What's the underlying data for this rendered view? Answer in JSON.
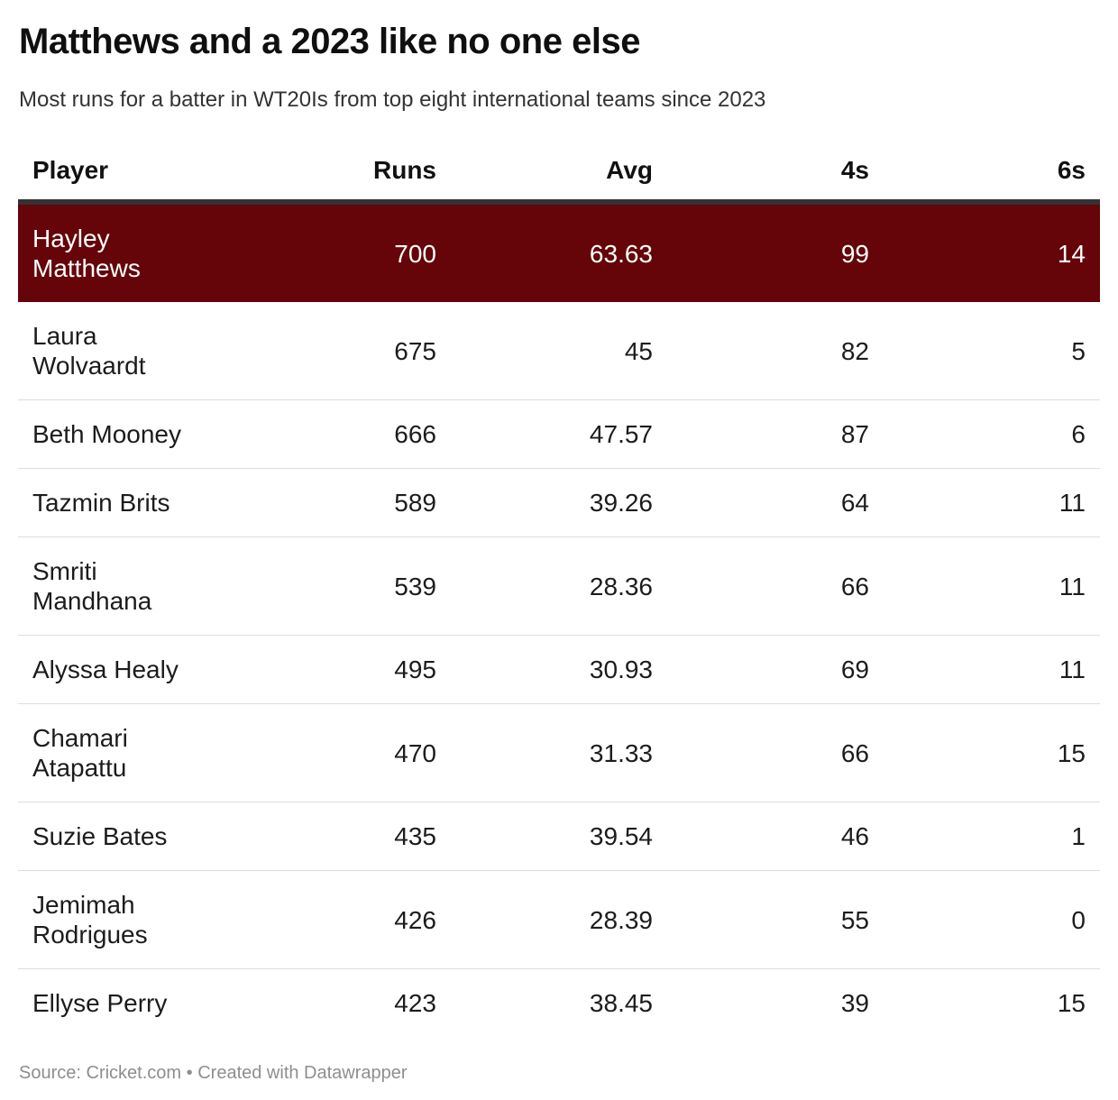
{
  "header": {
    "title": "Matthews and a 2023 like no one else",
    "subtitle": "Most runs for a batter in WT20Is from top eight international teams since 2023"
  },
  "table": {
    "columns": [
      {
        "label": "Player"
      },
      {
        "label": "Runs"
      },
      {
        "label": "Avg"
      },
      {
        "label": "4s"
      },
      {
        "label": "6s"
      }
    ],
    "rows": [
      {
        "player": "Hayley\nMatthews",
        "runs": "700",
        "avg": "63.63",
        "fours": "99",
        "sixes": "14",
        "highlight": true
      },
      {
        "player": "Laura\nWolvaardt",
        "runs": "675",
        "avg": "45",
        "fours": "82",
        "sixes": "5",
        "highlight": false
      },
      {
        "player": "Beth Mooney",
        "runs": "666",
        "avg": "47.57",
        "fours": "87",
        "sixes": "6",
        "highlight": false
      },
      {
        "player": "Tazmin Brits",
        "runs": "589",
        "avg": "39.26",
        "fours": "64",
        "sixes": "11",
        "highlight": false
      },
      {
        "player": "Smriti\nMandhana",
        "runs": "539",
        "avg": "28.36",
        "fours": "66",
        "sixes": "11",
        "highlight": false
      },
      {
        "player": "Alyssa Healy",
        "runs": "495",
        "avg": "30.93",
        "fours": "69",
        "sixes": "11",
        "highlight": false
      },
      {
        "player": "Chamari\nAtapattu",
        "runs": "470",
        "avg": "31.33",
        "fours": "66",
        "sixes": "15",
        "highlight": false
      },
      {
        "player": "Suzie Bates",
        "runs": "435",
        "avg": "39.54",
        "fours": "46",
        "sixes": "1",
        "highlight": false
      },
      {
        "player": "Jemimah\nRodrigues",
        "runs": "426",
        "avg": "28.39",
        "fours": "55",
        "sixes": "0",
        "highlight": false
      },
      {
        "player": "Ellyse Perry",
        "runs": "423",
        "avg": "38.45",
        "fours": "39",
        "sixes": "15",
        "highlight": false
      }
    ]
  },
  "footer": {
    "source_label": "Source:",
    "source": "Cricket.com",
    "separator": "•",
    "attribution": "Created with Datawrapper"
  },
  "colors": {
    "highlight_bg": "#650409",
    "highlight_text": "#ffffff",
    "header_border": "#333333",
    "row_divider": "#dddddd",
    "footer_text": "#8e8e8e"
  },
  "chart_data": {
    "type": "table",
    "title": "Matthews and a 2023 like no one else",
    "subtitle": "Most runs for a batter in WT20Is from top eight international teams since 2023",
    "columns": [
      "Player",
      "Runs",
      "Avg",
      "4s",
      "6s"
    ],
    "rows": [
      [
        "Hayley Matthews",
        700,
        63.63,
        99,
        14
      ],
      [
        "Laura Wolvaardt",
        675,
        45,
        82,
        5
      ],
      [
        "Beth Mooney",
        666,
        47.57,
        87,
        6
      ],
      [
        "Tazmin Brits",
        589,
        39.26,
        64,
        11
      ],
      [
        "Smriti Mandhana",
        539,
        28.36,
        66,
        11
      ],
      [
        "Alyssa Healy",
        495,
        30.93,
        69,
        11
      ],
      [
        "Chamari Atapattu",
        470,
        31.33,
        66,
        15
      ],
      [
        "Suzie Bates",
        435,
        39.54,
        46,
        1
      ],
      [
        "Jemimah Rodrigues",
        426,
        28.39,
        55,
        0
      ],
      [
        "Ellyse Perry",
        423,
        38.45,
        39,
        15
      ]
    ],
    "highlighted_row": "Hayley Matthews",
    "source": "Cricket.com",
    "attribution": "Created with Datawrapper"
  }
}
